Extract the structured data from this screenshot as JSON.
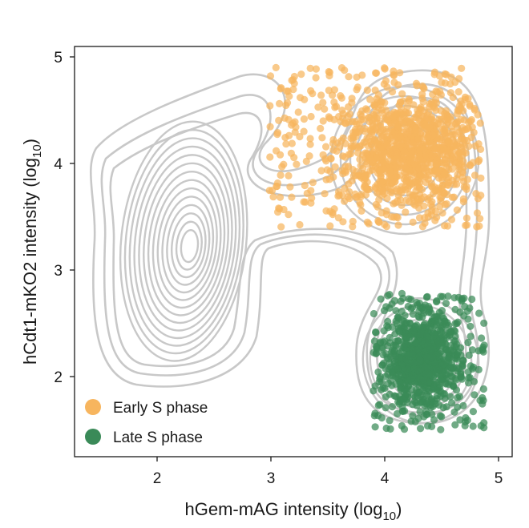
{
  "chart_data": {
    "type": "scatter",
    "title": "",
    "xlabel": "hGem-mAG intensity (log",
    "xlabel_sub": "10",
    "xlabel_end": ")",
    "ylabel": "hCdt1-mKO2 intensity (log",
    "ylabel_sub": "10",
    "ylabel_end": ")",
    "xlim": [
      1.35,
      5.05
    ],
    "ylim": [
      1.25,
      5.1
    ],
    "xticks": [
      "2",
      "3",
      "4",
      "5"
    ],
    "yticks": [
      "2",
      "3",
      "4",
      "5"
    ],
    "grid": false,
    "legend_position": "bottom-left",
    "series": [
      {
        "name": "Early S phase",
        "color": "#f7b55e",
        "x_range": [
          2.98,
          4.85
        ],
        "y_range": [
          3.4,
          4.9
        ],
        "center": [
          4.2,
          4.1
        ],
        "approx_points": 1200
      },
      {
        "name": "Late S phase",
        "color": "#3a8a58",
        "x_range": [
          3.9,
          4.88
        ],
        "y_range": [
          1.5,
          2.78
        ],
        "center": [
          4.32,
          2.15
        ],
        "approx_points": 900
      }
    ],
    "contour": {
      "color": "#c8c8c8",
      "description_peak": [
        2.22,
        3.3
      ]
    }
  }
}
